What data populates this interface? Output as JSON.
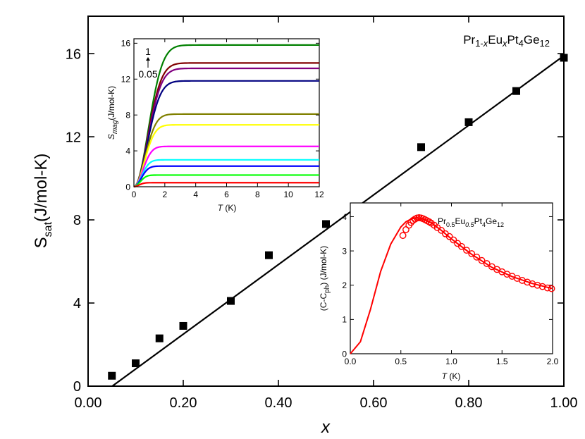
{
  "chart_data": [
    {
      "id": "main",
      "type": "scatter",
      "xlabel": "x",
      "ylabel_main": "S",
      "ylabel_sub": "sat",
      "ylabel_unit": "(J/mol-K)",
      "xlim": [
        0,
        1.0
      ],
      "ylim": [
        0,
        17.8
      ],
      "xticks": [
        0,
        0.2,
        0.4,
        0.6,
        0.8,
        1.0
      ],
      "xtick_labels": [
        "0.00",
        "0.20",
        "0.40",
        "0.60",
        "0.80",
        "1.00"
      ],
      "yticks": [
        0,
        4,
        8,
        12,
        16
      ],
      "ytick_labels": [
        "0",
        "4",
        "8",
        "12",
        "16"
      ],
      "series": [
        {
          "kind": "markers",
          "marker": "square",
          "x": [
            0.05,
            0.1,
            0.15,
            0.2,
            0.3,
            0.38,
            0.5,
            0.7,
            0.8,
            0.9,
            1.0
          ],
          "y": [
            0.5,
            1.1,
            2.3,
            2.9,
            4.1,
            6.3,
            7.8,
            11.5,
            12.7,
            14.2,
            15.8
          ]
        },
        {
          "kind": "line",
          "x": [
            0.0,
            1.0
          ],
          "y": [
            -0.85,
            15.9
          ]
        }
      ],
      "annotation": {
        "parts": [
          {
            "t": "Pr",
            "s": "n",
            "i": false
          },
          {
            "t": "1-",
            "s": "sub",
            "i": false
          },
          {
            "t": "x",
            "s": "sub",
            "i": true
          },
          {
            "t": "Eu",
            "s": "n",
            "i": false
          },
          {
            "t": "x",
            "s": "sub",
            "i": true
          },
          {
            "t": "Pt",
            "s": "n",
            "i": false
          },
          {
            "t": "4",
            "s": "sub",
            "i": false
          },
          {
            "t": "Ge",
            "s": "n",
            "i": false
          },
          {
            "t": "12",
            "s": "sub",
            "i": false
          }
        ]
      }
    },
    {
      "id": "inset-smag",
      "type": "line",
      "xlabel_italic": "T",
      "xlabel_rest": " (K)",
      "ylabel_italic": "S",
      "ylabel_sub": "mag",
      "ylabel_rest": "(J/mol-K)",
      "xlim": [
        0,
        12
      ],
      "ylim": [
        0,
        16.5
      ],
      "xticks": [
        0,
        2,
        4,
        6,
        8,
        10,
        12
      ],
      "xtick_labels": [
        "0",
        "2",
        "4",
        "6",
        "8",
        "10",
        "12"
      ],
      "yticks": [
        0,
        4,
        8,
        12,
        16
      ],
      "ytick_labels": [
        "0",
        "4",
        "8",
        "12",
        "16"
      ],
      "annotation_top": "1",
      "annotation_bottom": "0.05",
      "series": [
        {
          "color": "#008000",
          "saturation": 15.8,
          "tau": 1.3
        },
        {
          "color": "#800000",
          "saturation": 13.8,
          "tau": 1.25
        },
        {
          "color": "#800080",
          "saturation": 13.2,
          "tau": 1.25
        },
        {
          "color": "#000080",
          "saturation": 11.8,
          "tau": 1.2
        },
        {
          "color": "#808000",
          "saturation": 8.1,
          "tau": 1.0
        },
        {
          "color": "#ffff00",
          "saturation": 6.9,
          "tau": 0.95
        },
        {
          "color": "#ff00ff",
          "saturation": 4.5,
          "tau": 0.8
        },
        {
          "color": "#00ffff",
          "saturation": 3.0,
          "tau": 0.7
        },
        {
          "color": "#0000ff",
          "saturation": 2.3,
          "tau": 0.65
        },
        {
          "color": "#00ff00",
          "saturation": 1.3,
          "tau": 0.55
        },
        {
          "color": "#ff0000",
          "saturation": 0.45,
          "tau": 0.45
        }
      ]
    },
    {
      "id": "inset-cph",
      "type": "line",
      "xlabel_italic": "T",
      "xlabel_rest": " (K)",
      "ylabel_pre": "(C-C",
      "ylabel_sub": "ph",
      "ylabel_post": ") (J/mol-K)",
      "xlim": [
        0,
        2.0
      ],
      "ylim": [
        0,
        4.4
      ],
      "xticks": [
        0,
        0.5,
        1.0,
        1.5,
        2.0
      ],
      "xtick_labels": [
        "0.0",
        "0.5",
        "1.0",
        "1.5",
        "2.0"
      ],
      "yticks": [
        0,
        1,
        2,
        3,
        4
      ],
      "ytick_labels": [
        "0",
        "1",
        "2",
        "3",
        "4"
      ],
      "color": "#ff0000",
      "fit_curve": {
        "x": [
          0,
          0.1,
          0.2,
          0.3,
          0.4,
          0.5,
          0.55,
          0.6,
          0.65,
          0.7,
          0.75,
          0.8,
          0.9,
          1.0,
          1.2,
          1.4,
          1.6,
          1.8,
          2.0
        ],
        "y": [
          0,
          0.35,
          1.3,
          2.4,
          3.2,
          3.7,
          3.85,
          3.93,
          3.97,
          3.95,
          3.9,
          3.82,
          3.6,
          3.35,
          2.9,
          2.52,
          2.25,
          2.05,
          1.9
        ]
      },
      "points": {
        "x": [
          0.52,
          0.55,
          0.58,
          0.6,
          0.62,
          0.64,
          0.66,
          0.68,
          0.7,
          0.72,
          0.74,
          0.76,
          0.78,
          0.8,
          0.83,
          0.86,
          0.9,
          0.94,
          0.98,
          1.02,
          1.06,
          1.1,
          1.15,
          1.2,
          1.25,
          1.3,
          1.35,
          1.4,
          1.45,
          1.5,
          1.55,
          1.6,
          1.65,
          1.7,
          1.75,
          1.8,
          1.85,
          1.9,
          1.95,
          1.99
        ],
        "y": [
          3.45,
          3.62,
          3.75,
          3.83,
          3.89,
          3.93,
          3.96,
          3.97,
          3.96,
          3.94,
          3.91,
          3.88,
          3.85,
          3.81,
          3.75,
          3.68,
          3.6,
          3.5,
          3.42,
          3.32,
          3.22,
          3.13,
          3.02,
          2.92,
          2.82,
          2.72,
          2.63,
          2.54,
          2.46,
          2.39,
          2.32,
          2.26,
          2.2,
          2.14,
          2.09,
          2.04,
          2.0,
          1.96,
          1.92,
          1.9
        ]
      },
      "annotation": {
        "parts": [
          {
            "t": "Pr",
            "s": "n",
            "i": false
          },
          {
            "t": "0.5",
            "s": "sub",
            "i": false
          },
          {
            "t": "Eu",
            "s": "n",
            "i": false
          },
          {
            "t": "0.5",
            "s": "sub",
            "i": true
          },
          {
            "t": "Pt",
            "s": "n",
            "i": false
          },
          {
            "t": "4",
            "s": "sub",
            "i": false
          },
          {
            "t": "Ge",
            "s": "n",
            "i": false
          },
          {
            "t": "12",
            "s": "sub",
            "i": false
          }
        ]
      }
    }
  ]
}
